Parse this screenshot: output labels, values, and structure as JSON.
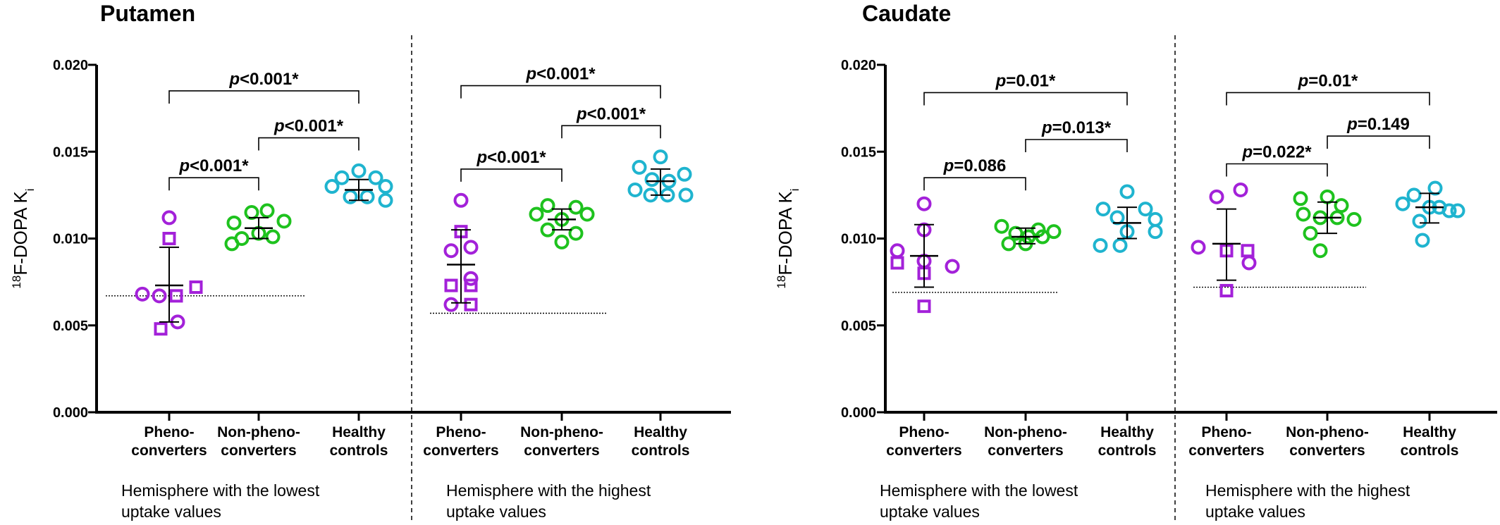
{
  "chart_data": [
    {
      "type": "scatter",
      "title": "Putamen",
      "ylabel": "18F-DOPA Ki",
      "ylim": [
        0,
        0.02
      ],
      "yticks": [
        "0.000",
        "0.005",
        "0.010",
        "0.015",
        "0.020"
      ],
      "categories": [
        "Pheno-converters",
        "Non-pheno-converters",
        "Healthy controls"
      ],
      "colors": [
        "#a321d9",
        "#1ec21e",
        "#1fb4cf"
      ],
      "panels": [
        {
          "label": "Hemisphere with the lowest uptake values",
          "baseline": 0.0067,
          "groups": [
            {
              "category": "Pheno-converters",
              "mean": 0.0073,
              "sd_low": 0.0052,
              "sd_high": 0.0095,
              "points": [
                {
                  "y": 0.0112,
                  "m": "o",
                  "dx": 0
                },
                {
                  "y": 0.01,
                  "m": "s",
                  "dx": 0
                },
                {
                  "y": 0.0068,
                  "m": "o",
                  "dx": -38
                },
                {
                  "y": 0.0067,
                  "m": "o",
                  "dx": -14
                },
                {
                  "y": 0.0067,
                  "m": "s",
                  "dx": 10
                },
                {
                  "y": 0.0072,
                  "m": "s",
                  "dx": 38
                },
                {
                  "y": 0.0052,
                  "m": "o",
                  "dx": 12
                },
                {
                  "y": 0.0048,
                  "m": "s",
                  "dx": -12
                }
              ]
            },
            {
              "category": "Non-pheno-converters",
              "mean": 0.0106,
              "sd_low": 0.01,
              "sd_high": 0.0112,
              "points": [
                {
                  "y": 0.0115,
                  "m": "o",
                  "dx": -10
                },
                {
                  "y": 0.0116,
                  "m": "o",
                  "dx": 12
                },
                {
                  "y": 0.0109,
                  "m": "o",
                  "dx": -35
                },
                {
                  "y": 0.011,
                  "m": "o",
                  "dx": 36
                },
                {
                  "y": 0.0103,
                  "m": "o",
                  "dx": 0
                },
                {
                  "y": 0.01,
                  "m": "o",
                  "dx": -24
                },
                {
                  "y": 0.0101,
                  "m": "o",
                  "dx": 20
                },
                {
                  "y": 0.0097,
                  "m": "o",
                  "dx": -38
                }
              ]
            },
            {
              "category": "Healthy controls",
              "mean": 0.0128,
              "sd_low": 0.0122,
              "sd_high": 0.0134,
              "points": [
                {
                  "y": 0.0139,
                  "m": "o",
                  "dx": 0
                },
                {
                  "y": 0.0135,
                  "m": "o",
                  "dx": -24
                },
                {
                  "y": 0.0135,
                  "m": "o",
                  "dx": 24
                },
                {
                  "y": 0.013,
                  "m": "o",
                  "dx": -38
                },
                {
                  "y": 0.013,
                  "m": "o",
                  "dx": 38
                },
                {
                  "y": 0.0124,
                  "m": "o",
                  "dx": -12
                },
                {
                  "y": 0.0124,
                  "m": "o",
                  "dx": 12
                },
                {
                  "y": 0.0122,
                  "m": "o",
                  "dx": 38
                }
              ]
            }
          ],
          "comparisons": [
            {
              "from": 0,
              "to": 1,
              "y": 0.0135,
              "label": "p<0.001*"
            },
            {
              "from": 1,
              "to": 2,
              "y": 0.0158,
              "label": "p<0.001*"
            },
            {
              "from": 0,
              "to": 2,
              "y": 0.0185,
              "label": "p<0.001*"
            }
          ]
        },
        {
          "label": "Hemisphere with the highest uptake values",
          "baseline": 0.0057,
          "groups": [
            {
              "category": "Pheno-converters",
              "mean": 0.0085,
              "sd_low": 0.0063,
              "sd_high": 0.0105,
              "points": [
                {
                  "y": 0.0122,
                  "m": "o",
                  "dx": 0
                },
                {
                  "y": 0.0104,
                  "m": "s",
                  "dx": 0
                },
                {
                  "y": 0.0093,
                  "m": "o",
                  "dx": -14
                },
                {
                  "y": 0.0095,
                  "m": "o",
                  "dx": 14
                },
                {
                  "y": 0.0077,
                  "m": "o",
                  "dx": 14
                },
                {
                  "y": 0.0073,
                  "m": "s",
                  "dx": -14
                },
                {
                  "y": 0.0073,
                  "m": "s",
                  "dx": 14
                },
                {
                  "y": 0.0062,
                  "m": "o",
                  "dx": -14
                },
                {
                  "y": 0.0062,
                  "m": "s",
                  "dx": 14
                }
              ]
            },
            {
              "category": "Non-pheno-converters",
              "mean": 0.0111,
              "sd_low": 0.0105,
              "sd_high": 0.0117,
              "points": [
                {
                  "y": 0.0119,
                  "m": "o",
                  "dx": -20
                },
                {
                  "y": 0.0118,
                  "m": "o",
                  "dx": 20
                },
                {
                  "y": 0.0114,
                  "m": "o",
                  "dx": -36
                },
                {
                  "y": 0.0114,
                  "m": "o",
                  "dx": 36
                },
                {
                  "y": 0.0111,
                  "m": "o",
                  "dx": 0
                },
                {
                  "y": 0.0105,
                  "m": "o",
                  "dx": -20
                },
                {
                  "y": 0.0103,
                  "m": "o",
                  "dx": 20
                },
                {
                  "y": 0.0098,
                  "m": "o",
                  "dx": 0
                }
              ]
            },
            {
              "category": "Healthy controls",
              "mean": 0.0133,
              "sd_low": 0.0125,
              "sd_high": 0.014,
              "points": [
                {
                  "y": 0.0147,
                  "m": "o",
                  "dx": 0
                },
                {
                  "y": 0.0141,
                  "m": "o",
                  "dx": -30
                },
                {
                  "y": 0.0137,
                  "m": "o",
                  "dx": 34
                },
                {
                  "y": 0.0134,
                  "m": "o",
                  "dx": -12
                },
                {
                  "y": 0.0133,
                  "m": "o",
                  "dx": 12
                },
                {
                  "y": 0.0128,
                  "m": "o",
                  "dx": -36
                },
                {
                  "y": 0.0125,
                  "m": "o",
                  "dx": -14
                },
                {
                  "y": 0.0125,
                  "m": "o",
                  "dx": 10
                },
                {
                  "y": 0.0125,
                  "m": "o",
                  "dx": 36
                }
              ]
            }
          ],
          "comparisons": [
            {
              "from": 0,
              "to": 1,
              "y": 0.014,
              "label": "p<0.001*"
            },
            {
              "from": 1,
              "to": 2,
              "y": 0.0165,
              "label": "p<0.001*"
            },
            {
              "from": 0,
              "to": 2,
              "y": 0.0188,
              "label": "p<0.001*"
            }
          ]
        }
      ]
    },
    {
      "type": "scatter",
      "title": "Caudate",
      "ylabel": "18F-DOPA Ki",
      "ylim": [
        0,
        0.02
      ],
      "yticks": [
        "0.000",
        "0.005",
        "0.010",
        "0.015",
        "0.020"
      ],
      "categories": [
        "Pheno-converters",
        "Non-pheno-converters",
        "Healthy controls"
      ],
      "colors": [
        "#a321d9",
        "#1ec21e",
        "#1fb4cf"
      ],
      "panels": [
        {
          "label": "Hemisphere with the lowest uptake values",
          "baseline": 0.0069,
          "groups": [
            {
              "category": "Pheno-converters",
              "mean": 0.009,
              "sd_low": 0.0072,
              "sd_high": 0.0108,
              "points": [
                {
                  "y": 0.012,
                  "m": "o",
                  "dx": 0
                },
                {
                  "y": 0.0105,
                  "m": "o",
                  "dx": 0
                },
                {
                  "y": 0.0093,
                  "m": "o",
                  "dx": -38
                },
                {
                  "y": 0.0086,
                  "m": "s",
                  "dx": -38
                },
                {
                  "y": 0.0087,
                  "m": "o",
                  "dx": 0
                },
                {
                  "y": 0.0084,
                  "m": "o",
                  "dx": 40
                },
                {
                  "y": 0.008,
                  "m": "s",
                  "dx": 0
                },
                {
                  "y": 0.0061,
                  "m": "s",
                  "dx": 0
                }
              ]
            },
            {
              "category": "Non-pheno-converters",
              "mean": 0.0101,
              "sd_low": 0.0097,
              "sd_high": 0.0106,
              "points": [
                {
                  "y": 0.0107,
                  "m": "o",
                  "dx": -34
                },
                {
                  "y": 0.0105,
                  "m": "o",
                  "dx": 18
                },
                {
                  "y": 0.0104,
                  "m": "o",
                  "dx": 40
                },
                {
                  "y": 0.0103,
                  "m": "o",
                  "dx": -14
                },
                {
                  "y": 0.0101,
                  "m": "o",
                  "dx": 4
                },
                {
                  "y": 0.0101,
                  "m": "o",
                  "dx": 24
                },
                {
                  "y": 0.0097,
                  "m": "o",
                  "dx": -24
                },
                {
                  "y": 0.0097,
                  "m": "o",
                  "dx": 0
                }
              ]
            },
            {
              "category": "Healthy controls",
              "mean": 0.0109,
              "sd_low": 0.01,
              "sd_high": 0.0118,
              "points": [
                {
                  "y": 0.0127,
                  "m": "o",
                  "dx": 0
                },
                {
                  "y": 0.0117,
                  "m": "o",
                  "dx": -34
                },
                {
                  "y": 0.0117,
                  "m": "o",
                  "dx": 26
                },
                {
                  "y": 0.0112,
                  "m": "o",
                  "dx": -14
                },
                {
                  "y": 0.0111,
                  "m": "o",
                  "dx": 40
                },
                {
                  "y": 0.0104,
                  "m": "o",
                  "dx": 0
                },
                {
                  "y": 0.0104,
                  "m": "o",
                  "dx": 40
                },
                {
                  "y": 0.0096,
                  "m": "o",
                  "dx": -38
                },
                {
                  "y": 0.0096,
                  "m": "o",
                  "dx": -10
                }
              ]
            }
          ],
          "comparisons": [
            {
              "from": 0,
              "to": 1,
              "y": 0.0135,
              "label": "p=0.086"
            },
            {
              "from": 1,
              "to": 2,
              "y": 0.0157,
              "label": "p=0.013*"
            },
            {
              "from": 0,
              "to": 2,
              "y": 0.0184,
              "label": "p=0.01*"
            }
          ]
        },
        {
          "label": "Hemisphere with the highest uptake values",
          "baseline": 0.0072,
          "groups": [
            {
              "category": "Pheno-converters",
              "mean": 0.0097,
              "sd_low": 0.0076,
              "sd_high": 0.0117,
              "points": [
                {
                  "y": 0.0128,
                  "m": "o",
                  "dx": 20
                },
                {
                  "y": 0.0124,
                  "m": "o",
                  "dx": -14
                },
                {
                  "y": 0.0095,
                  "m": "o",
                  "dx": -40
                },
                {
                  "y": 0.0093,
                  "m": "s",
                  "dx": 0
                },
                {
                  "y": 0.0093,
                  "m": "s",
                  "dx": 30
                },
                {
                  "y": 0.0086,
                  "m": "o",
                  "dx": 32
                },
                {
                  "y": 0.007,
                  "m": "s",
                  "dx": 0
                }
              ]
            },
            {
              "category": "Non-pheno-converters",
              "mean": 0.0112,
              "sd_low": 0.0103,
              "sd_high": 0.0121,
              "points": [
                {
                  "y": 0.0123,
                  "m": "o",
                  "dx": -38
                },
                {
                  "y": 0.0124,
                  "m": "o",
                  "dx": 0
                },
                {
                  "y": 0.0119,
                  "m": "o",
                  "dx": 20
                },
                {
                  "y": 0.0114,
                  "m": "o",
                  "dx": -34
                },
                {
                  "y": 0.0112,
                  "m": "o",
                  "dx": -10
                },
                {
                  "y": 0.0112,
                  "m": "o",
                  "dx": 14
                },
                {
                  "y": 0.0111,
                  "m": "o",
                  "dx": 38
                },
                {
                  "y": 0.0103,
                  "m": "o",
                  "dx": -24
                },
                {
                  "y": 0.0093,
                  "m": "o",
                  "dx": -10
                }
              ]
            },
            {
              "category": "Healthy controls",
              "mean": 0.0118,
              "sd_low": 0.0109,
              "sd_high": 0.0126,
              "points": [
                {
                  "y": 0.0129,
                  "m": "o",
                  "dx": 8
                },
                {
                  "y": 0.0125,
                  "m": "o",
                  "dx": -22
                },
                {
                  "y": 0.012,
                  "m": "o",
                  "dx": -38
                },
                {
                  "y": 0.0118,
                  "m": "o",
                  "dx": 0
                },
                {
                  "y": 0.0118,
                  "m": "o",
                  "dx": 14
                },
                {
                  "y": 0.0116,
                  "m": "o",
                  "dx": 28
                },
                {
                  "y": 0.0116,
                  "m": "o",
                  "dx": 40
                },
                {
                  "y": 0.011,
                  "m": "o",
                  "dx": -14
                },
                {
                  "y": 0.0099,
                  "m": "o",
                  "dx": -10
                }
              ]
            }
          ],
          "comparisons": [
            {
              "from": 0,
              "to": 1,
              "y": 0.0143,
              "label": "p=0.022*"
            },
            {
              "from": 1,
              "to": 2,
              "y": 0.0159,
              "label": "p=0.149"
            },
            {
              "from": 0,
              "to": 2,
              "y": 0.0184,
              "label": "p=0.01*"
            }
          ]
        }
      ]
    }
  ]
}
